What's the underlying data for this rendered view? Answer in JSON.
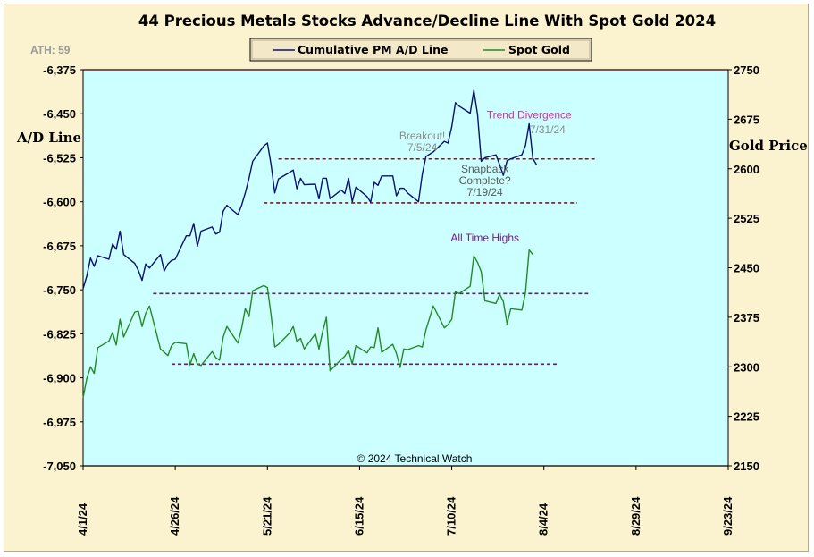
{
  "chart_data": {
    "type": "line",
    "title": "44 Precious Metals Stocks Advance/Decline Line With Spot Gold 2024",
    "ath_label": "ATH: 59",
    "copyright": "© 2024 Technical Watch",
    "y_left": {
      "label": "A/D Line",
      "range": [
        -7050,
        -6375
      ],
      "ticks": [
        -6375,
        -6450,
        -6525,
        -6600,
        -6675,
        -6750,
        -6825,
        -6900,
        -6975,
        -7050
      ],
      "tick_labels": [
        "-6,375",
        "-6,450",
        "-6,525",
        "-6,600",
        "-6,675",
        "-6,750",
        "-6,825",
        "-6,900",
        "-6,975",
        "-7,050"
      ]
    },
    "y_right": {
      "label": "Gold Price",
      "range": [
        2150,
        2750
      ],
      "ticks": [
        2150,
        2225,
        2300,
        2375,
        2450,
        2525,
        2600,
        2675,
        2750
      ],
      "tick_labels": [
        "2150",
        "2225",
        "2300",
        "2375",
        "2450",
        "2525",
        "2600",
        "2675",
        "2750"
      ]
    },
    "x_axis": {
      "start": "2024-04-01",
      "end": "2024-09-23",
      "ticks": [
        "2024-04-01",
        "2024-04-26",
        "2024-05-21",
        "2024-06-15",
        "2024-07-10",
        "2024-08-04",
        "2024-08-29",
        "2024-09-23"
      ],
      "tick_labels": [
        "4/1/24",
        "4/26/24",
        "5/21/24",
        "6/15/24",
        "7/10/24",
        "8/4/24",
        "8/29/24",
        "9/23/24"
      ]
    },
    "legend_position": "top-center",
    "grid": false,
    "series": [
      {
        "name": "Cumulative PM A/D Line",
        "axis": "left",
        "color": "#0a1070",
        "points": [
          [
            "2024-04-01",
            -6748
          ],
          [
            "2024-04-02",
            -6727
          ],
          [
            "2024-04-03",
            -6696
          ],
          [
            "2024-04-04",
            -6710
          ],
          [
            "2024-04-05",
            -6692
          ],
          [
            "2024-04-08",
            -6698
          ],
          [
            "2024-04-09",
            -6672
          ],
          [
            "2024-04-10",
            -6681
          ],
          [
            "2024-04-11",
            -6650
          ],
          [
            "2024-04-12",
            -6690
          ],
          [
            "2024-04-15",
            -6705
          ],
          [
            "2024-04-16",
            -6717
          ],
          [
            "2024-04-17",
            -6734
          ],
          [
            "2024-04-18",
            -6706
          ],
          [
            "2024-04-19",
            -6713
          ],
          [
            "2024-04-22",
            -6690
          ],
          [
            "2024-04-23",
            -6718
          ],
          [
            "2024-04-24",
            -6706
          ],
          [
            "2024-04-25",
            -6700
          ],
          [
            "2024-04-26",
            -6698
          ],
          [
            "2024-04-29",
            -6658
          ],
          [
            "2024-04-30",
            -6658
          ],
          [
            "2024-05-01",
            -6637
          ],
          [
            "2024-05-02",
            -6676
          ],
          [
            "2024-05-03",
            -6650
          ],
          [
            "2024-05-06",
            -6643
          ],
          [
            "2024-05-07",
            -6655
          ],
          [
            "2024-05-08",
            -6652
          ],
          [
            "2024-05-09",
            -6616
          ],
          [
            "2024-05-10",
            -6606
          ],
          [
            "2024-05-13",
            -6622
          ],
          [
            "2024-05-14",
            -6606
          ],
          [
            "2024-05-15",
            -6585
          ],
          [
            "2024-05-16",
            -6560
          ],
          [
            "2024-05-17",
            -6531
          ],
          [
            "2024-05-20",
            -6505
          ],
          [
            "2024-05-21",
            -6500
          ],
          [
            "2024-05-22",
            -6537
          ],
          [
            "2024-05-23",
            -6585
          ],
          [
            "2024-05-24",
            -6561
          ],
          [
            "2024-05-27",
            -6550
          ],
          [
            "2024-05-28",
            -6546
          ],
          [
            "2024-05-29",
            -6578
          ],
          [
            "2024-05-30",
            -6560
          ],
          [
            "2024-05-31",
            -6571
          ],
          [
            "2024-06-03",
            -6570
          ],
          [
            "2024-06-04",
            -6595
          ],
          [
            "2024-06-05",
            -6560
          ],
          [
            "2024-06-06",
            -6560
          ],
          [
            "2024-06-07",
            -6595
          ],
          [
            "2024-06-10",
            -6580
          ],
          [
            "2024-06-11",
            -6586
          ],
          [
            "2024-06-12",
            -6560
          ],
          [
            "2024-06-13",
            -6600
          ],
          [
            "2024-06-14",
            -6575
          ],
          [
            "2024-06-17",
            -6591
          ],
          [
            "2024-06-18",
            -6601
          ],
          [
            "2024-06-19",
            -6567
          ],
          [
            "2024-06-20",
            -6572
          ],
          [
            "2024-06-21",
            -6556
          ],
          [
            "2024-06-24",
            -6556
          ],
          [
            "2024-06-25",
            -6590
          ],
          [
            "2024-06-26",
            -6577
          ],
          [
            "2024-06-27",
            -6577
          ],
          [
            "2024-06-28",
            -6585
          ],
          [
            "2024-07-01",
            -6600
          ],
          [
            "2024-07-02",
            -6553
          ],
          [
            "2024-07-03",
            -6523
          ],
          [
            "2024-07-05",
            -6515
          ],
          [
            "2024-07-08",
            -6497
          ],
          [
            "2024-07-09",
            -6500
          ],
          [
            "2024-07-10",
            -6472
          ],
          [
            "2024-07-11",
            -6431
          ],
          [
            "2024-07-12",
            -6437
          ],
          [
            "2024-07-15",
            -6449
          ],
          [
            "2024-07-16",
            -6410
          ],
          [
            "2024-07-17",
            -6452
          ],
          [
            "2024-07-18",
            -6531
          ],
          [
            "2024-07-19",
            -6525
          ],
          [
            "2024-07-22",
            -6520
          ],
          [
            "2024-07-23",
            -6537
          ],
          [
            "2024-07-24",
            -6555
          ],
          [
            "2024-07-25",
            -6530
          ],
          [
            "2024-07-26",
            -6527
          ],
          [
            "2024-07-29",
            -6520
          ],
          [
            "2024-07-30",
            -6504
          ],
          [
            "2024-07-31",
            -6467
          ],
          [
            "2024-08-01",
            -6526
          ],
          [
            "2024-08-02",
            -6537
          ]
        ]
      },
      {
        "name": "Spot Gold",
        "axis": "right",
        "color": "#228b22",
        "points": [
          [
            "2024-04-01",
            2253
          ],
          [
            "2024-04-02",
            2282
          ],
          [
            "2024-04-03",
            2300
          ],
          [
            "2024-04-04",
            2290
          ],
          [
            "2024-04-05",
            2329
          ],
          [
            "2024-04-08",
            2339
          ],
          [
            "2024-04-09",
            2352
          ],
          [
            "2024-04-10",
            2333
          ],
          [
            "2024-04-11",
            2372
          ],
          [
            "2024-04-12",
            2345
          ],
          [
            "2024-04-15",
            2383
          ],
          [
            "2024-04-16",
            2384
          ],
          [
            "2024-04-17",
            2361
          ],
          [
            "2024-04-18",
            2381
          ],
          [
            "2024-04-19",
            2392
          ],
          [
            "2024-04-22",
            2327
          ],
          [
            "2024-04-23",
            2322
          ],
          [
            "2024-04-24",
            2317
          ],
          [
            "2024-04-25",
            2332
          ],
          [
            "2024-04-26",
            2337
          ],
          [
            "2024-04-29",
            2335
          ],
          [
            "2024-04-30",
            2303
          ],
          [
            "2024-05-01",
            2320
          ],
          [
            "2024-05-02",
            2304
          ],
          [
            "2024-05-03",
            2302
          ],
          [
            "2024-05-06",
            2323
          ],
          [
            "2024-05-07",
            2314
          ],
          [
            "2024-05-08",
            2310
          ],
          [
            "2024-05-09",
            2345
          ],
          [
            "2024-05-10",
            2361
          ],
          [
            "2024-05-13",
            2336
          ],
          [
            "2024-05-14",
            2358
          ],
          [
            "2024-05-15",
            2388
          ],
          [
            "2024-05-16",
            2376
          ],
          [
            "2024-05-17",
            2415
          ],
          [
            "2024-05-20",
            2423
          ],
          [
            "2024-05-21",
            2420
          ],
          [
            "2024-05-22",
            2378
          ],
          [
            "2024-05-23",
            2330
          ],
          [
            "2024-05-24",
            2334
          ],
          [
            "2024-05-27",
            2351
          ],
          [
            "2024-05-28",
            2361
          ],
          [
            "2024-05-29",
            2338
          ],
          [
            "2024-05-30",
            2343
          ],
          [
            "2024-05-31",
            2327
          ],
          [
            "2024-06-03",
            2350
          ],
          [
            "2024-06-04",
            2327
          ],
          [
            "2024-06-05",
            2354
          ],
          [
            "2024-06-06",
            2375
          ],
          [
            "2024-06-07",
            2294
          ],
          [
            "2024-06-10",
            2311
          ],
          [
            "2024-06-11",
            2316
          ],
          [
            "2024-06-12",
            2325
          ],
          [
            "2024-06-13",
            2304
          ],
          [
            "2024-06-14",
            2332
          ],
          [
            "2024-06-17",
            2321
          ],
          [
            "2024-06-18",
            2330
          ],
          [
            "2024-06-19",
            2329
          ],
          [
            "2024-06-20",
            2359
          ],
          [
            "2024-06-21",
            2322
          ],
          [
            "2024-06-24",
            2334
          ],
          [
            "2024-06-25",
            2320
          ],
          [
            "2024-06-26",
            2299
          ],
          [
            "2024-06-27",
            2327
          ],
          [
            "2024-06-28",
            2326
          ],
          [
            "2024-07-01",
            2332
          ],
          [
            "2024-07-02",
            2330
          ],
          [
            "2024-07-03",
            2356
          ],
          [
            "2024-07-05",
            2392
          ],
          [
            "2024-07-08",
            2359
          ],
          [
            "2024-07-09",
            2364
          ],
          [
            "2024-07-10",
            2372
          ],
          [
            "2024-07-11",
            2414
          ],
          [
            "2024-07-12",
            2411
          ],
          [
            "2024-07-15",
            2422
          ],
          [
            "2024-07-16",
            2468
          ],
          [
            "2024-07-17",
            2458
          ],
          [
            "2024-07-18",
            2444
          ],
          [
            "2024-07-19",
            2400
          ],
          [
            "2024-07-22",
            2396
          ],
          [
            "2024-07-23",
            2410
          ],
          [
            "2024-07-24",
            2399
          ],
          [
            "2024-07-25",
            2365
          ],
          [
            "2024-07-26",
            2388
          ],
          [
            "2024-07-29",
            2386
          ],
          [
            "2024-07-30",
            2412
          ],
          [
            "2024-07-31",
            2477
          ],
          [
            "2024-08-01",
            2470
          ]
        ]
      }
    ],
    "reference_lines": [
      {
        "axis": "left",
        "y": -6527,
        "x_start": "2024-05-24",
        "x_end": "2024-08-18",
        "color": "#7a1a1a"
      },
      {
        "axis": "left",
        "y": -6602,
        "x_start": "2024-05-20",
        "x_end": "2024-08-13",
        "color": "#7a1a1a"
      },
      {
        "axis": "right",
        "y": 2411,
        "x_start": "2024-04-20",
        "x_end": "2024-08-16",
        "color": "#6a1a6a"
      },
      {
        "axis": "right",
        "y": 2304,
        "x_start": "2024-04-25",
        "x_end": "2024-08-08",
        "color": "#6a1a6a"
      }
    ],
    "annotations": [
      {
        "lines": [
          "Breakout!",
          "7/5/24"
        ],
        "axis": "left",
        "x": "2024-07-02",
        "y": -6494,
        "color": "#8a8a8a"
      },
      {
        "lines": [
          "Snapback",
          "Complete?",
          "7/19/24"
        ],
        "axis": "left",
        "x": "2024-07-19",
        "y": -6550,
        "color": "#5a5a5a"
      },
      {
        "lines": [
          "Trend  Divergence"
        ],
        "axis": "left",
        "x": "2024-07-31",
        "y": -6458,
        "color": "#d0309a"
      },
      {
        "lines": [
          "7/31/24"
        ],
        "axis": "left",
        "x": "2024-08-05",
        "y": -6483,
        "color": "#8a8a8a"
      },
      {
        "lines": [
          "All Time  Highs"
        ],
        "axis": "right",
        "x": "2024-07-19",
        "y": 2490,
        "color": "#7a1a8a"
      }
    ]
  }
}
